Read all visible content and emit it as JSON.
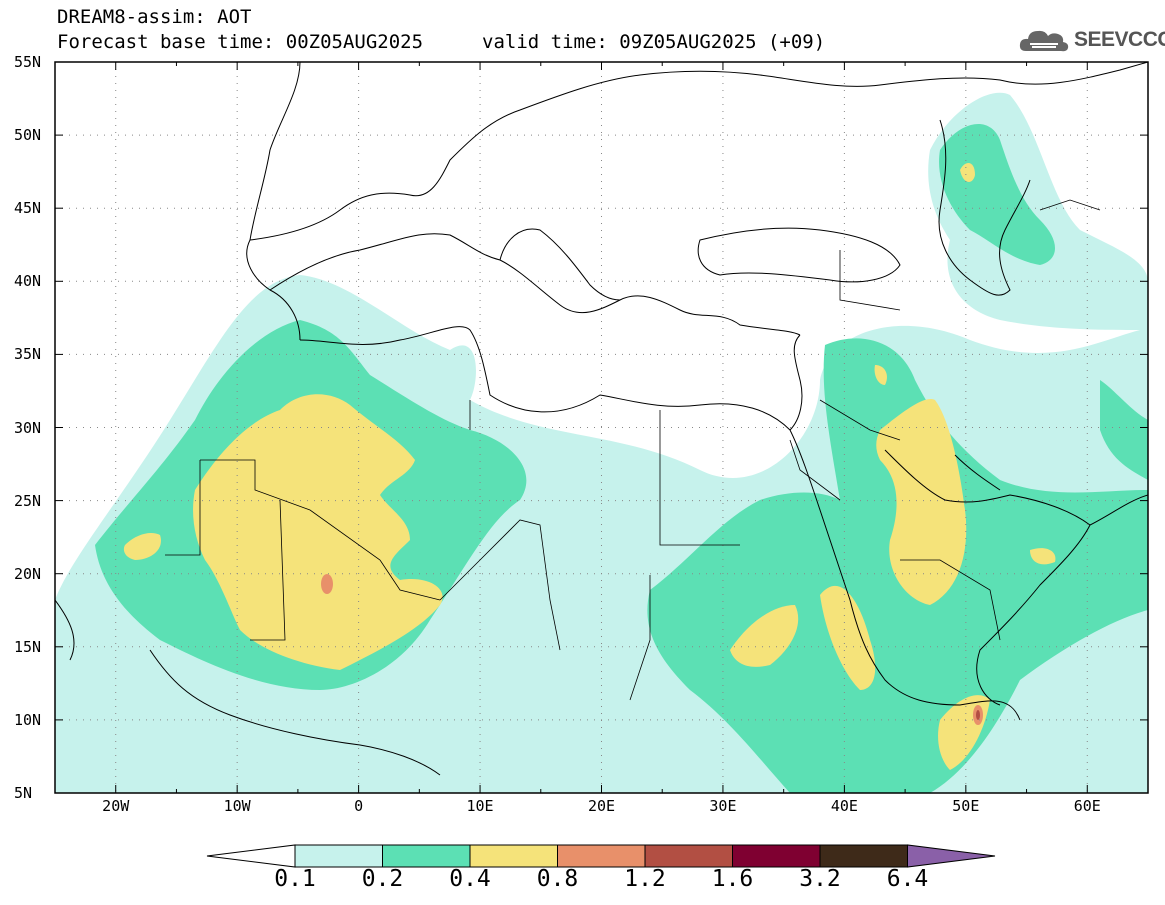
{
  "header": {
    "line1": "DREAM8-assim: AOT",
    "line2_left": "Forecast base time: 00Z05AUG2025",
    "line2_right": "valid time: 09Z05AUG2025 (+09)"
  },
  "logo": {
    "text": "SEEVCCC",
    "icon": "cloud-logo-icon"
  },
  "map": {
    "lat_labels": [
      "55N",
      "50N",
      "45N",
      "40N",
      "35N",
      "30N",
      "25N",
      "20N",
      "15N",
      "10N",
      "5N"
    ],
    "lon_labels": [
      "20W",
      "10W",
      "0",
      "10E",
      "20E",
      "30E",
      "40E",
      "50E",
      "60E"
    ],
    "lon_range": [
      -25,
      65
    ],
    "lat_range": [
      5,
      55
    ]
  },
  "colorbar": {
    "labels": [
      "0.1",
      "0.2",
      "0.4",
      "0.8",
      "1.2",
      "1.6",
      "3.2",
      "6.4"
    ],
    "colors": [
      "#c6f2ec",
      "#5ce0b4",
      "#f5e37a",
      "#e8906a",
      "#b24f43",
      "#7f0031",
      "#3e2a19",
      "#8a60a8"
    ]
  },
  "colors": {
    "c1": "#c6f2ec",
    "c2": "#5ce0b4",
    "c3": "#f5e37a",
    "c4": "#e8906a",
    "c5": "#b24f43"
  }
}
